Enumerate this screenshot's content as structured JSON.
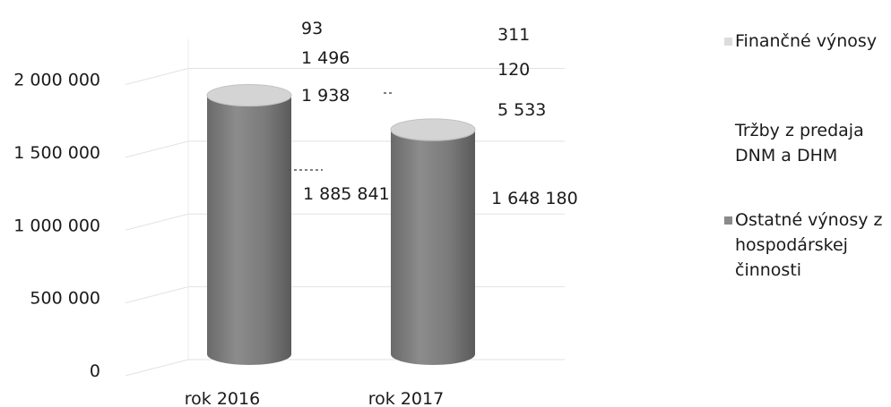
{
  "chart_data": {
    "type": "bar",
    "shape": "cylinder",
    "categories": [
      "rok 2016",
      "rok 2017"
    ],
    "series": [
      {
        "name": "Ostatné výnosy z hospodárskej činnosti",
        "values": [
          1885841,
          1648180
        ],
        "color": "#777777"
      },
      {
        "name": "Tržby z predaja DNM a DHM",
        "values": [
          1938,
          5533
        ],
        "color": "#bdbdbd"
      },
      {
        "name": "Finančné výnosy",
        "values": [
          1496,
          120
        ],
        "color": "#dcdcdc"
      },
      {
        "name": "",
        "values": [
          93,
          311
        ],
        "color": "#e6e6e6"
      }
    ],
    "yticks": [
      "0",
      "500 000",
      "1 000 000",
      "1 500 000",
      "2 000 000"
    ],
    "ytick_values": [
      0,
      500000,
      1000000,
      1500000,
      2000000
    ],
    "ylim": [
      0,
      2200000
    ],
    "grid": true,
    "legend_position": "right",
    "legend": [
      {
        "label": "Finančné výnosy",
        "lines": [
          "Finančné výnosy"
        ],
        "color": "#dcdcdc"
      },
      {
        "label": "Tržby z predaja DNM a DHM",
        "lines": [
          "Tržby z predaja",
          "DNM a DHM"
        ],
        "color": "#ffffff"
      },
      {
        "label": "Ostatné výnosy z hospodárskej činnosti",
        "lines": [
          "Ostatné výnosy z",
          "hospodárskej",
          "činnosti"
        ],
        "color": "#8a8a8a"
      }
    ],
    "data_labels": [
      [
        "1 885 841",
        "1 938",
        "1 496",
        "93"
      ],
      [
        "1 648 180",
        "5 533",
        "120",
        "311"
      ]
    ]
  }
}
